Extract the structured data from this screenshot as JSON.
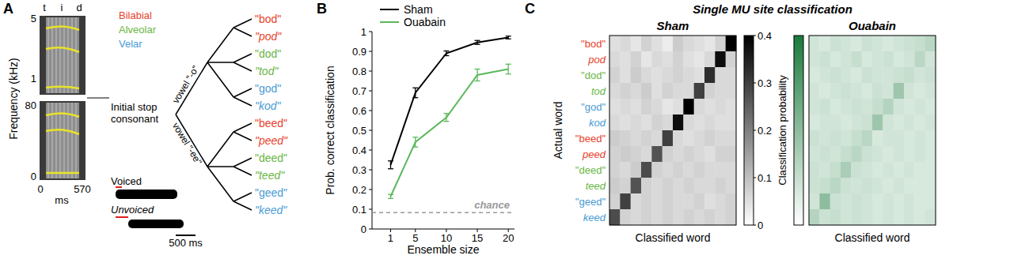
{
  "panel_labels": [
    "A",
    "B",
    "C"
  ],
  "panel_a": {
    "spectrogram": {
      "phonemes": [
        "t",
        "i",
        "d"
      ],
      "y_label": "Frequency (kHz)",
      "top_ticks": [
        "5",
        "1"
      ],
      "bottom_ticks": [
        "80",
        "0"
      ],
      "x_ticks": [
        "0",
        "570"
      ],
      "x_unit": "ms"
    },
    "places": [
      {
        "name": "Bilabial",
        "color": "#e8412c"
      },
      {
        "name": "Alveolar",
        "color": "#6ab644"
      },
      {
        "name": "Velar",
        "color": "#4a9bd4"
      }
    ],
    "root": "Initial stop consonant",
    "vowels": [
      "vowel \"-o\"",
      "vowel \"-ee\""
    ],
    "words": [
      {
        "text": "\"bod\"",
        "place": 0,
        "voiced": true
      },
      {
        "text": "\"pod\"",
        "place": 0,
        "voiced": false
      },
      {
        "text": "\"dod\"",
        "place": 1,
        "voiced": true
      },
      {
        "text": "\"tod\"",
        "place": 1,
        "voiced": false
      },
      {
        "text": "\"god\"",
        "place": 2,
        "voiced": true
      },
      {
        "text": "\"kod\"",
        "place": 2,
        "voiced": false
      },
      {
        "text": "\"beed\"",
        "place": 0,
        "voiced": true
      },
      {
        "text": "\"peed\"",
        "place": 0,
        "voiced": false
      },
      {
        "text": "\"deed\"",
        "place": 1,
        "voiced": true
      },
      {
        "text": "\"teed\"",
        "place": 1,
        "voiced": false
      },
      {
        "text": "\"geed\"",
        "place": 2,
        "voiced": true
      },
      {
        "text": "\"keed\"",
        "place": 2,
        "voiced": false
      }
    ],
    "voicing": {
      "voiced": "Voiced",
      "unvoiced": "Unvoiced",
      "scale_bar": "500 ms"
    }
  },
  "panel_c_title": "Single MU site classification",
  "chart_data": [
    {
      "type": "line",
      "x_label": "Ensemble size",
      "y_label": "Prob. correct classification",
      "x": [
        1,
        5,
        10,
        15,
        20
      ],
      "xlim": [
        -2,
        21
      ],
      "xticks": [
        1,
        5,
        10,
        15,
        20
      ],
      "ylim": [
        0,
        1
      ],
      "yticks": [
        0,
        0.1,
        0.2,
        0.3,
        0.4,
        0.5,
        0.6,
        0.7,
        0.8,
        0.9,
        1
      ],
      "legend": "upper left",
      "series": [
        {
          "name": "Sham",
          "color": "#000000",
          "values": [
            0.325,
            0.69,
            0.89,
            0.945,
            0.97
          ],
          "errors": [
            0.02,
            0.025,
            0.012,
            0.01,
            0.007
          ]
        },
        {
          "name": "Ouabain",
          "color": "#5cb85c",
          "values": [
            0.165,
            0.44,
            0.565,
            0.78,
            0.81
          ],
          "errors": [
            0.01,
            0.025,
            0.02,
            0.03,
            0.025
          ]
        }
      ],
      "annotations": [
        {
          "text": "chance",
          "y": 0.0833,
          "line_style": "dashed",
          "color": "#999999"
        }
      ]
    },
    {
      "type": "heatmap",
      "title": "Sham",
      "y_label": "Actual word",
      "x_label": "Classified word",
      "categories": [
        "\"bod\"",
        "pod",
        "\"dod\"",
        "tod",
        "\"god\"",
        "kod",
        "\"beed\"",
        "peed",
        "\"deed\"",
        "teed",
        "\"geed\"",
        "keed"
      ],
      "category_places": [
        0,
        0,
        1,
        1,
        2,
        2,
        0,
        0,
        1,
        1,
        2,
        2
      ],
      "category_voiced": [
        true,
        false,
        true,
        false,
        true,
        false,
        true,
        false,
        true,
        false,
        true,
        false
      ],
      "cells": [
        [
          0.05,
          0.06,
          0.04,
          0.07,
          0.05,
          0.03,
          0.08,
          0.06,
          0.05,
          0.04,
          0.07,
          0.4
        ],
        [
          0.06,
          0.05,
          0.07,
          0.04,
          0.06,
          0.05,
          0.07,
          0.05,
          0.04,
          0.06,
          0.38,
          0.07
        ],
        [
          0.07,
          0.05,
          0.08,
          0.06,
          0.05,
          0.06,
          0.07,
          0.06,
          0.05,
          0.33,
          0.06,
          0.06
        ],
        [
          0.06,
          0.07,
          0.06,
          0.08,
          0.05,
          0.07,
          0.06,
          0.06,
          0.3,
          0.07,
          0.06,
          0.06
        ],
        [
          0.05,
          0.06,
          0.05,
          0.07,
          0.06,
          0.04,
          0.05,
          0.4,
          0.06,
          0.05,
          0.06,
          0.05
        ],
        [
          0.06,
          0.05,
          0.06,
          0.05,
          0.07,
          0.06,
          0.38,
          0.06,
          0.05,
          0.06,
          0.05,
          0.05
        ],
        [
          0.08,
          0.07,
          0.06,
          0.07,
          0.06,
          0.3,
          0.06,
          0.05,
          0.06,
          0.07,
          0.06,
          0.06
        ],
        [
          0.07,
          0.08,
          0.07,
          0.06,
          0.27,
          0.07,
          0.06,
          0.07,
          0.06,
          0.05,
          0.07,
          0.07
        ],
        [
          0.07,
          0.06,
          0.08,
          0.28,
          0.07,
          0.06,
          0.07,
          0.06,
          0.07,
          0.06,
          0.06,
          0.06
        ],
        [
          0.08,
          0.07,
          0.27,
          0.07,
          0.06,
          0.07,
          0.06,
          0.07,
          0.06,
          0.06,
          0.07,
          0.06
        ],
        [
          0.07,
          0.3,
          0.06,
          0.07,
          0.06,
          0.07,
          0.06,
          0.06,
          0.07,
          0.05,
          0.06,
          0.07
        ],
        [
          0.28,
          0.07,
          0.06,
          0.07,
          0.06,
          0.07,
          0.06,
          0.07,
          0.06,
          0.07,
          0.06,
          0.07
        ]
      ],
      "color_scale": {
        "range": [
          0,
          0.4
        ],
        "ticks": [
          0,
          0.1,
          0.2,
          0.3,
          0.4
        ],
        "label": "Classification probability",
        "color": "#000000"
      }
    },
    {
      "type": "heatmap",
      "title": "Ouabain",
      "x_label": "Classified word",
      "tick_labels": false,
      "cells": [
        [
          0.08,
          0.07,
          0.09,
          0.08,
          0.07,
          0.09,
          0.08,
          0.07,
          0.08,
          0.09,
          0.1,
          0.12
        ],
        [
          0.08,
          0.09,
          0.07,
          0.08,
          0.1,
          0.07,
          0.08,
          0.09,
          0.07,
          0.08,
          0.12,
          0.08
        ],
        [
          0.07,
          0.08,
          0.09,
          0.08,
          0.07,
          0.09,
          0.08,
          0.08,
          0.09,
          0.1,
          0.08,
          0.09
        ],
        [
          0.08,
          0.07,
          0.08,
          0.09,
          0.08,
          0.07,
          0.09,
          0.08,
          0.17,
          0.08,
          0.07,
          0.08
        ],
        [
          0.08,
          0.09,
          0.07,
          0.08,
          0.09,
          0.08,
          0.1,
          0.13,
          0.08,
          0.07,
          0.08,
          0.07
        ],
        [
          0.07,
          0.08,
          0.08,
          0.07,
          0.08,
          0.09,
          0.17,
          0.08,
          0.07,
          0.08,
          0.07,
          0.08
        ],
        [
          0.09,
          0.08,
          0.09,
          0.08,
          0.1,
          0.12,
          0.07,
          0.08,
          0.08,
          0.07,
          0.08,
          0.07
        ],
        [
          0.08,
          0.09,
          0.08,
          0.1,
          0.12,
          0.09,
          0.08,
          0.07,
          0.08,
          0.07,
          0.08,
          0.07
        ],
        [
          0.09,
          0.08,
          0.1,
          0.15,
          0.09,
          0.08,
          0.07,
          0.08,
          0.07,
          0.08,
          0.07,
          0.07
        ],
        [
          0.09,
          0.1,
          0.12,
          0.09,
          0.08,
          0.09,
          0.08,
          0.07,
          0.08,
          0.07,
          0.07,
          0.07
        ],
        [
          0.08,
          0.2,
          0.09,
          0.08,
          0.09,
          0.08,
          0.07,
          0.08,
          0.07,
          0.08,
          0.07,
          0.07
        ],
        [
          0.13,
          0.09,
          0.1,
          0.08,
          0.09,
          0.08,
          0.07,
          0.08,
          0.07,
          0.08,
          0.07,
          0.08
        ]
      ],
      "color_scale": {
        "range": [
          0,
          0.4
        ],
        "color": "#1a7a3c"
      }
    }
  ]
}
